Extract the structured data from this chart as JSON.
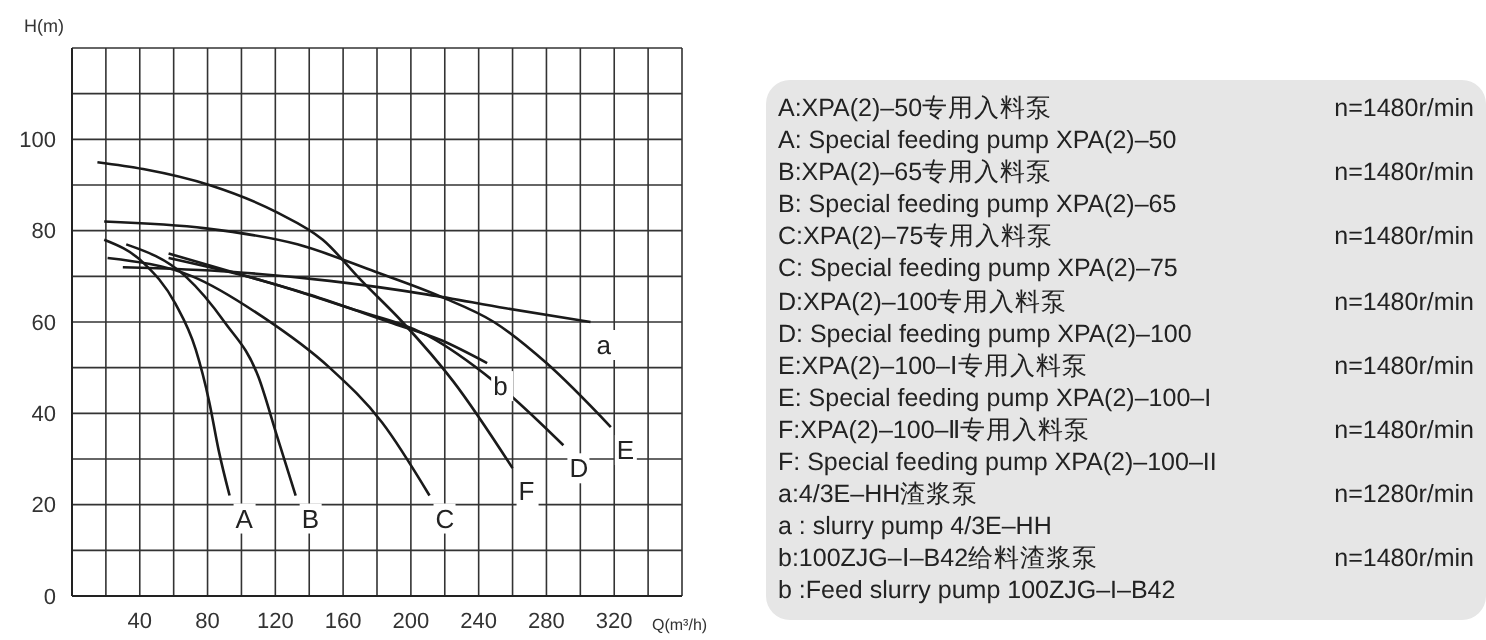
{
  "chart_data": {
    "type": "line",
    "xlabel": "Q(m³/h)",
    "ylabel": "H(m)",
    "xlim": [
      0,
      360
    ],
    "ylim": [
      0,
      120
    ],
    "xticks": [
      {
        "value": 20,
        "label": null
      },
      40,
      {
        "value": 60,
        "label": null
      },
      80,
      {
        "value": 100,
        "label": null
      },
      120,
      {
        "value": 140,
        "label": null
      },
      160,
      {
        "value": 180,
        "label": null
      },
      200,
      {
        "value": 220,
        "label": null
      },
      240,
      {
        "value": 260,
        "label": null
      },
      280,
      {
        "value": 300,
        "label": null
      },
      320,
      {
        "value": 340,
        "label": null
      },
      {
        "value": 360,
        "label": null
      }
    ],
    "yticks": [
      0,
      {
        "value": 10,
        "label": null
      },
      20,
      {
        "value": 30,
        "label": null
      },
      40,
      {
        "value": 50,
        "label": null
      },
      60,
      {
        "value": 70,
        "label": null
      },
      80,
      {
        "value": 90,
        "label": null
      },
      100,
      {
        "value": 110,
        "label": null
      },
      {
        "value": 120,
        "label": null
      }
    ],
    "grid": true,
    "legend": false,
    "marker": "none",
    "line_style": "solid",
    "series": [
      {
        "name": "A",
        "color": "#1a1a1a",
        "x": [
          19,
          42,
          61,
          73,
          81,
          86.5,
          93
        ],
        "values": [
          78,
          73,
          64,
          54,
          42.5,
          32,
          22
        ]
      },
      {
        "name": "B",
        "color": "#1a1a1a",
        "x": [
          32,
          67,
          90,
          110,
          121,
          132
        ],
        "values": [
          77,
          70,
          60,
          48,
          35,
          22
        ]
      },
      {
        "name": "C",
        "color": "#1a1a1a",
        "x": [
          21,
          71,
          113,
          152,
          183,
          211
        ],
        "values": [
          74,
          70,
          61,
          50,
          38,
          22
        ]
      },
      {
        "name": "D",
        "color": "#1a1a1a",
        "x": [
          57,
          113,
          164,
          210,
          249,
          290
        ],
        "values": [
          74,
          69,
          63,
          57,
          47,
          33
        ]
      },
      {
        "name": "E",
        "color": "#1a1a1a",
        "x": [
          19,
          79,
          133,
          179,
          218,
          249,
          280,
          318
        ],
        "values": [
          82,
          80.5,
          77,
          71,
          65.5,
          60,
          51,
          37
        ]
      },
      {
        "name": "F",
        "color": "#1a1a1a",
        "x": [
          15,
          42,
          81,
          121,
          148,
          171,
          195,
          225,
          260
        ],
        "values": [
          95,
          93.5,
          90,
          84,
          78,
          69,
          60,
          47,
          28
        ]
      },
      {
        "name": "a",
        "color": "#1a1a1a",
        "x": [
          30,
          94,
          152,
          210,
          256,
          306
        ],
        "values": [
          72,
          71,
          69,
          66,
          63,
          60
        ]
      },
      {
        "name": "b",
        "color": "#1a1a1a",
        "x": [
          57,
          94,
          140,
          187,
          218,
          245
        ],
        "values": [
          75,
          71,
          66,
          60,
          56,
          51
        ]
      }
    ],
    "annotations": [
      "A:XPA(2)–50专用入料泵",
      "n=1480r/min",
      "A: Special feeding pump XPA(2)–50",
      "B:XPA(2)–65专用入料泵",
      "n=1480r/min",
      "B: Special feeding pump XPA(2)–65",
      "C:XPA(2)–75专用入料泵",
      "n=1480r/min",
      "C: Special feeding pump XPA(2)–75",
      "D:XPA(2)–100专用入料泵",
      "n=1480r/min",
      "D: Special feeding pump XPA(2)–100",
      "E:XPA(2)–100–Ⅰ专用入料泵",
      "n=1480r/min",
      "E: Special feeding pump XPA(2)–100–I",
      "F:XPA(2)–100–Ⅱ专用入料泵",
      "n=1480r/min",
      "F: Special feeding pump  XPA(2)–100–II",
      "a:4/3E–HH渣浆泵",
      "n=1280r/min",
      "a : slurry pump 4/3E–HH",
      "b:100ZJG–Ⅰ–B42给料渣浆泵",
      "n=1480r/min",
      "b :Feed slurry pump 100ZJG–I–B42"
    ]
  }
}
